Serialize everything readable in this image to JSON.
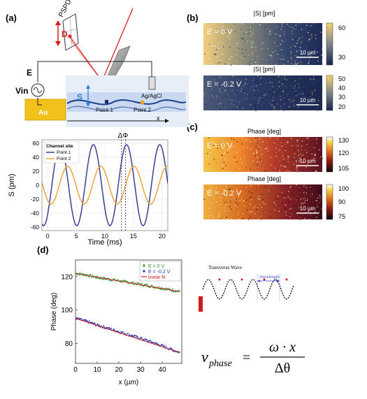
{
  "panel_labels": {
    "a": "(a)",
    "b": "(b)",
    "c": "(c)",
    "d": "(d)"
  },
  "schematic": {
    "pspd_label": "PSPD",
    "d_label": "D",
    "e_label": "E",
    "vin_label": "Vin",
    "s_label": "S",
    "agagcl_label": "Ag/AgCl",
    "au_label": "Au",
    "point1_label": "Point 1",
    "point2_label": "Point 2",
    "x_label": "x"
  },
  "maps": {
    "b_top": {
      "title": "|S| [pm]",
      "e_label": "E = 0 V",
      "scale_label": "10 µm",
      "cbar_ticks": [
        "60",
        "30"
      ]
    },
    "b_bottom": {
      "title": "|S| [pm]",
      "e_label": "E = -0.2 V",
      "scale_label": "10 µm",
      "cbar_ticks": [
        "50",
        "40",
        "30",
        "20"
      ]
    },
    "c_top": {
      "title": "Phase [deg]",
      "e_label": "E = 0 V",
      "scale_label": "10 µm",
      "cbar_ticks": [
        "130",
        "120",
        "105"
      ]
    },
    "c_bottom": {
      "title": "Phase [deg]",
      "e_label": "E = -0.2 V",
      "scale_label": "10 µm",
      "cbar_ticks": [
        "100",
        "90",
        "75"
      ]
    }
  },
  "wave_diagram": {
    "title": "Transverse Wave",
    "wavelength_label": "Wavelength"
  },
  "formula": {
    "lhs": "v",
    "lhs_sub": "phase",
    "equals": "=",
    "numerator": "ω · x",
    "denominator": "Δθ"
  },
  "chart_data": [
    {
      "type": "line",
      "title": "",
      "legend_title": "Channel site",
      "annotation": "ΔΦ",
      "xlabel": "Time (ms)",
      "ylabel": "S (pm)",
      "xlim": [
        -1,
        21
      ],
      "ylim": [
        -65,
        65
      ],
      "xticks": [
        0,
        5,
        10,
        15,
        20
      ],
      "yticks": [
        -60,
        -40,
        -20,
        0,
        20,
        40,
        60
      ],
      "grid": true,
      "legend_position": "top-left",
      "series": [
        {
          "name": "Point 1",
          "color": "#3a3f94",
          "amplitude": 58,
          "period_ms": 5.8,
          "phase_rad": -0.8,
          "x": [
            0,
            1,
            2,
            3,
            4,
            5,
            6,
            7,
            8,
            9,
            10,
            11,
            12,
            13,
            14,
            15,
            16,
            17,
            18,
            19,
            20
          ],
          "y": [
            -42,
            14,
            56,
            44,
            -14,
            -56,
            -40,
            16,
            57,
            40,
            -20,
            -58,
            -36,
            22,
            58,
            38,
            -22,
            -58,
            -30,
            30,
            58
          ]
        },
        {
          "name": "Point 2",
          "color": "#f0a33a",
          "amplitude": 27,
          "period_ms": 5.8,
          "phase_rad": -2.2,
          "x": [
            0,
            1,
            2,
            3,
            4,
            5,
            6,
            7,
            8,
            9,
            10,
            11,
            12,
            13,
            14,
            15,
            16,
            17,
            18,
            19,
            20
          ],
          "y": [
            -22,
            -20,
            8,
            26,
            20,
            -4,
            -26,
            -18,
            8,
            27,
            17,
            -12,
            -27,
            -14,
            16,
            27,
            12,
            -18,
            -26,
            -2,
            24
          ]
        }
      ]
    },
    {
      "type": "scatter",
      "title": "",
      "xlabel": "x (µm)",
      "ylabel": "Phase (deg)",
      "xlim": [
        0,
        49
      ],
      "ylim": [
        68,
        130
      ],
      "xticks": [
        0,
        10,
        20,
        30,
        40
      ],
      "yticks": [
        80,
        100,
        120
      ],
      "legend_position": "top-right",
      "series": [
        {
          "name": "E = 0 V",
          "color": "#2f9a2f",
          "x": [
            0,
            5,
            10,
            15,
            20,
            25,
            30,
            35,
            40,
            45,
            48
          ],
          "y": [
            122,
            121,
            119.5,
            118.5,
            117.5,
            116.5,
            115.3,
            114.2,
            113,
            111.8,
            111
          ]
        },
        {
          "name": "E = -0.2 V",
          "color": "#2a2fb0",
          "x": [
            0,
            5,
            10,
            15,
            20,
            25,
            30,
            35,
            40,
            45,
            48
          ],
          "y": [
            95,
            93.2,
            91,
            89,
            87,
            85,
            83,
            80.8,
            78.5,
            76,
            74.5
          ]
        },
        {
          "name": "linear fit",
          "color": "#d12020",
          "x": [
            0,
            48
          ],
          "y": [
            122,
            111
          ]
        }
      ]
    }
  ]
}
